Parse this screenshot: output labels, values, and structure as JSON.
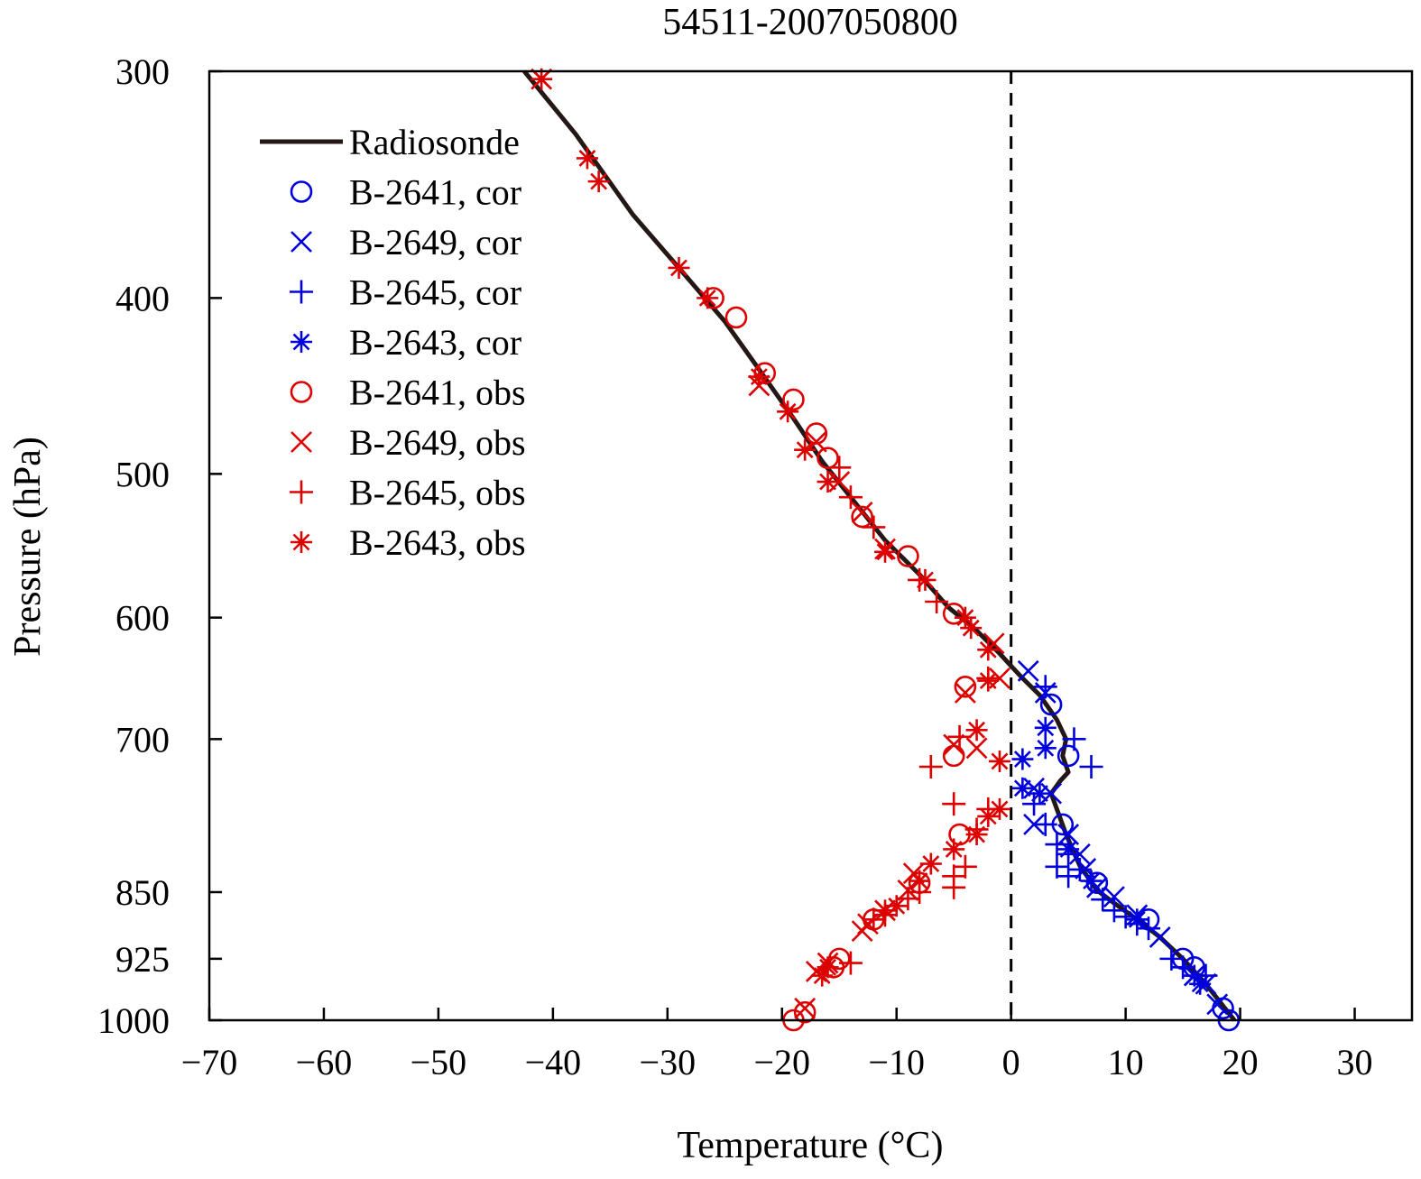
{
  "chart_data": {
    "type": "scatter",
    "title": "54511-2007050800",
    "xlabel": "Temperature (°C)",
    "ylabel": "Pressure (hPa)",
    "xlim": [
      -70,
      35
    ],
    "ylim": [
      300,
      1000
    ],
    "y_inverted": true,
    "y_scale": "log-pressure",
    "x_ticks": [
      -70,
      -60,
      -50,
      -40,
      -30,
      -20,
      -10,
      0,
      10,
      20,
      30
    ],
    "x_tick_labels": [
      "−70",
      "−60",
      "−50",
      "−40",
      "−30",
      "−20",
      "−10",
      "0",
      "10",
      "20",
      "30"
    ],
    "y_ticks": [
      300,
      400,
      500,
      600,
      700,
      850,
      925,
      1000
    ],
    "y_tick_labels": [
      "300",
      "400",
      "500",
      "600",
      "700",
      "850",
      "925",
      "1000"
    ],
    "zero_line": {
      "x": 0,
      "style": "dashed",
      "color": "#000000"
    },
    "grid": false,
    "legend_position": "top-left",
    "colors": {
      "cor": "#0000dd",
      "obs": "#dd0000",
      "radiosonde": "#231815"
    },
    "series": [
      {
        "name": "Radiosonde",
        "kind": "line",
        "color": "#231815",
        "points": [
          [
            -42.5,
            300
          ],
          [
            -38,
            325
          ],
          [
            -33,
            360
          ],
          [
            -29,
            385
          ],
          [
            -25,
            412
          ],
          [
            -22,
            438
          ],
          [
            -19,
            466
          ],
          [
            -16.5,
            492
          ],
          [
            -14,
            515
          ],
          [
            -11,
            544
          ],
          [
            -8,
            568
          ],
          [
            -5.5,
            592
          ],
          [
            -3,
            610
          ],
          [
            -1,
            628
          ],
          [
            0,
            638
          ],
          [
            1,
            648
          ],
          [
            2.5,
            662
          ],
          [
            4,
            683
          ],
          [
            4.8,
            700
          ],
          [
            4.5,
            715
          ],
          [
            5,
            730
          ],
          [
            4.3,
            738
          ],
          [
            3.5,
            750
          ],
          [
            4.8,
            790
          ],
          [
            6,
            822
          ],
          [
            7.5,
            848
          ],
          [
            9,
            862
          ],
          [
            11,
            880
          ],
          [
            13,
            900
          ],
          [
            15,
            925
          ],
          [
            17,
            955
          ],
          [
            19.5,
            1000
          ]
        ]
      },
      {
        "name": "B-2641, cor",
        "marker": "circle",
        "color": "#0000dd",
        "points": [
          [
            3.5,
            670
          ],
          [
            5,
            715
          ],
          [
            4.5,
            780
          ],
          [
            7.5,
            840
          ],
          [
            12,
            880
          ],
          [
            15,
            925
          ],
          [
            16,
            935
          ],
          [
            18.5,
            985
          ],
          [
            19,
            1000
          ]
        ]
      },
      {
        "name": "B-2649, cor",
        "marker": "x",
        "color": "#0000dd",
        "points": [
          [
            1.5,
            642
          ],
          [
            3,
            660
          ],
          [
            2,
            745
          ],
          [
            3.5,
            750
          ],
          [
            2,
            780
          ],
          [
            5,
            790
          ],
          [
            6,
            810
          ],
          [
            6.5,
            825
          ],
          [
            7.5,
            845
          ],
          [
            9,
            855
          ],
          [
            11,
            875
          ],
          [
            13,
            900
          ],
          [
            16,
            945
          ],
          [
            17,
            955
          ],
          [
            18,
            980
          ]
        ]
      },
      {
        "name": "B-2645, cor",
        "marker": "plus",
        "color": "#0000dd",
        "points": [
          [
            3,
            655
          ],
          [
            5.5,
            700
          ],
          [
            7,
            725
          ],
          [
            2,
            760
          ],
          [
            3,
            780
          ],
          [
            4,
            800
          ],
          [
            5,
            810
          ],
          [
            4,
            823
          ],
          [
            6,
            826
          ],
          [
            5,
            833
          ],
          [
            8,
            858
          ],
          [
            9,
            870
          ],
          [
            10,
            877
          ],
          [
            11,
            885
          ],
          [
            12,
            890
          ],
          [
            14,
            925
          ],
          [
            15,
            935
          ],
          [
            17,
            945
          ]
        ]
      },
      {
        "name": "B-2643, cor",
        "marker": "asterisk",
        "color": "#0000dd",
        "points": [
          [
            3,
            690
          ],
          [
            3,
            708
          ],
          [
            1,
            718
          ],
          [
            1,
            745
          ],
          [
            2.5,
            750
          ],
          [
            5,
            805
          ],
          [
            7,
            838
          ],
          [
            11,
            880
          ],
          [
            16,
            945
          ],
          [
            16.5,
            955
          ]
        ]
      },
      {
        "name": "B-2641, obs",
        "marker": "circle",
        "color": "#dd0000",
        "points": [
          [
            -26,
            400
          ],
          [
            -24,
            410
          ],
          [
            -21.5,
            440
          ],
          [
            -19,
            455
          ],
          [
            -17,
            475
          ],
          [
            -16,
            490
          ],
          [
            -13,
            528
          ],
          [
            -9,
            555
          ],
          [
            -5,
            597
          ],
          [
            -4,
            655
          ],
          [
            -5,
            715
          ],
          [
            -4.5,
            790
          ],
          [
            -8,
            840
          ],
          [
            -12,
            880
          ],
          [
            -15,
            925
          ],
          [
            -15.5,
            935
          ],
          [
            -18,
            990
          ],
          [
            -19,
            1000
          ]
        ]
      },
      {
        "name": "B-2649, obs",
        "marker": "x",
        "color": "#dd0000",
        "points": [
          [
            -41,
            303
          ],
          [
            -22,
            447
          ],
          [
            -17,
            480
          ],
          [
            -15,
            505
          ],
          [
            -13,
            525
          ],
          [
            -11,
            550
          ],
          [
            -1.5,
            620
          ],
          [
            -1,
            648
          ],
          [
            -4,
            660
          ],
          [
            -5,
            705
          ],
          [
            -3,
            708
          ],
          [
            -8.5,
            830
          ],
          [
            -9,
            848
          ],
          [
            -11,
            870
          ],
          [
            -12.5,
            885
          ],
          [
            -13,
            893
          ],
          [
            -16,
            930
          ],
          [
            -17,
            940
          ],
          [
            -18,
            985
          ]
        ]
      },
      {
        "name": "B-2645, obs",
        "marker": "plus",
        "color": "#dd0000",
        "points": [
          [
            -15,
            496
          ],
          [
            -14,
            515
          ],
          [
            -12,
            535
          ],
          [
            -8,
            572
          ],
          [
            -6.5,
            588
          ],
          [
            -2,
            648
          ],
          [
            -4.5,
            698
          ],
          [
            -7,
            725
          ],
          [
            -5,
            760
          ],
          [
            -2,
            765
          ],
          [
            -3,
            785
          ],
          [
            -4,
            823
          ],
          [
            -5,
            833
          ],
          [
            -5,
            845
          ],
          [
            -8,
            850
          ],
          [
            -9,
            857
          ],
          [
            -11,
            875
          ],
          [
            -12,
            880
          ],
          [
            -14,
            930
          ]
        ]
      },
      {
        "name": "B-2643, obs",
        "marker": "asterisk",
        "color": "#dd0000",
        "points": [
          [
            -41,
            303
          ],
          [
            -37,
            335
          ],
          [
            -36,
            345
          ],
          [
            -29,
            385
          ],
          [
            -26.5,
            400
          ],
          [
            -22,
            442
          ],
          [
            -19.5,
            462
          ],
          [
            -18,
            485
          ],
          [
            -16,
            505
          ],
          [
            -11,
            552
          ],
          [
            -7.5,
            572
          ],
          [
            -4,
            600
          ],
          [
            -3.5,
            608
          ],
          [
            -2,
            625
          ],
          [
            -2,
            650
          ],
          [
            -3,
            692
          ],
          [
            -1,
            720
          ],
          [
            -1,
            765
          ],
          [
            -2,
            772
          ],
          [
            -3,
            790
          ],
          [
            -5,
            805
          ],
          [
            -7,
            820
          ],
          [
            -8,
            838
          ],
          [
            -10,
            865
          ],
          [
            -11,
            870
          ],
          [
            -16,
            935
          ],
          [
            -16.5,
            945
          ]
        ]
      }
    ]
  }
}
